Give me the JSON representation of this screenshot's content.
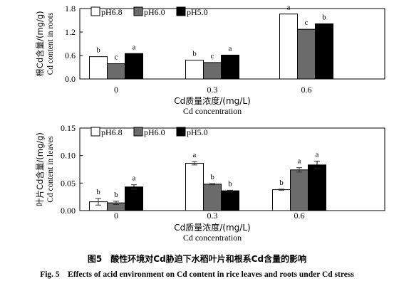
{
  "chart_data": [
    {
      "type": "bar",
      "categories": [
        "0",
        "0.3",
        "0.6"
      ],
      "series": [
        {
          "name": "pH6.8",
          "values": [
            0.57,
            0.48,
            1.66
          ],
          "letters": [
            "b",
            "b",
            "a"
          ]
        },
        {
          "name": "pH6.0",
          "values": [
            0.39,
            0.42,
            1.27
          ],
          "letters": [
            "c",
            "c",
            "c"
          ]
        },
        {
          "name": "pH5.0",
          "values": [
            0.65,
            0.61,
            1.41
          ],
          "letters": [
            "a",
            "a",
            "b"
          ]
        }
      ],
      "ylim": [
        0,
        1.8
      ],
      "yticks": [
        "0.0",
        "0.6",
        "1.2",
        "1.8"
      ],
      "ylabel_cn": "根Cd含量/(mg/g)",
      "ylabel_en": "Cd content in roots",
      "xlabel_cn": "Cd质量浓度/(mg/L)",
      "xlabel_en": "Cd concentration",
      "legend": "top-left"
    },
    {
      "type": "bar",
      "categories": [
        "0",
        "0.3",
        "0.6"
      ],
      "series": [
        {
          "name": "pH6.8",
          "values": [
            0.016,
            0.086,
            0.038
          ],
          "errors": [
            0.006,
            0.003,
            0.001
          ],
          "letters": [
            "b",
            "a",
            "b"
          ]
        },
        {
          "name": "pH6.0",
          "values": [
            0.014,
            0.048,
            0.074
          ],
          "errors": [
            0.003,
            0.001,
            0.004
          ],
          "letters": [
            "b",
            "b",
            "a"
          ]
        },
        {
          "name": "pH5.0",
          "values": [
            0.043,
            0.036,
            0.083
          ],
          "errors": [
            0.004,
            0.001,
            0.007
          ],
          "letters": [
            "a",
            "b",
            "a"
          ]
        }
      ],
      "ylim": [
        0,
        0.15
      ],
      "yticks": [
        "0.00",
        "0.05",
        "0.10",
        "0.15"
      ],
      "ylabel_cn": "叶片Cd含量/(mg/g)",
      "ylabel_en": "Cd content in leaves",
      "xlabel_cn": "Cd质量浓度/(mg/L)",
      "xlabel_en": "Cd concentration",
      "legend": "top-left"
    }
  ],
  "series_fills": [
    "#ffffff",
    "#6b6b6b",
    "#000000"
  ],
  "caption": {
    "cn": "图5　酸性环境对Cd胁迫下水稻叶片和根系Cd含量的影响",
    "en": "Fig. 5　Effects of acid environment on Cd content in rice leaves and roots under Cd stress"
  }
}
